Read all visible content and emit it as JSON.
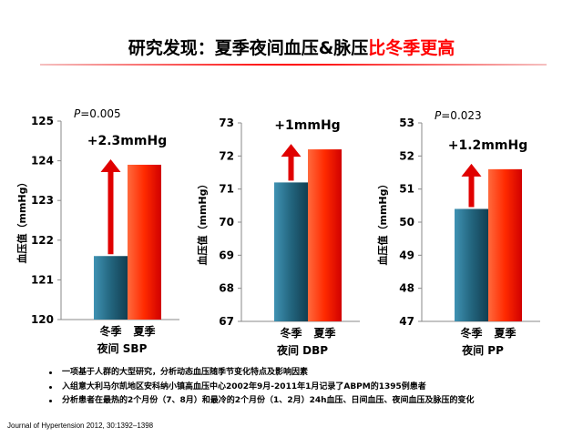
{
  "title": {
    "main": "研究发现：夏季夜间血压&脉压",
    "highlight": "比冬季更高"
  },
  "colors": {
    "winter_bar": "#23657e",
    "summer_bar": "#ff2a00",
    "arrow": "#e00000",
    "title_highlight": "#ff0000"
  },
  "chart_data": [
    {
      "type": "bar",
      "categories": [
        "冬季",
        "夏季"
      ],
      "values": [
        121.6,
        123.9
      ],
      "ylim": [
        120,
        125
      ],
      "yticks": [
        "120",
        "121",
        "122",
        "123",
        "124",
        "125"
      ],
      "ylabel": "血压值（mmHg）",
      "xlabel": "夜间 SBP",
      "p_value": "P=0.005",
      "change_label": "+2.3mmHg"
    },
    {
      "type": "bar",
      "categories": [
        "冬季",
        "夏季"
      ],
      "values": [
        71.2,
        72.2
      ],
      "ylim": [
        67,
        73
      ],
      "yticks": [
        "67",
        "68",
        "69",
        "70",
        "71",
        "72",
        "73"
      ],
      "ylabel": "血压值（mmHg）",
      "xlabel": "夜间 DBP",
      "p_value": "",
      "change_label": "+1mmHg"
    },
    {
      "type": "bar",
      "categories": [
        "冬季",
        "夏季"
      ],
      "values": [
        50.4,
        51.6
      ],
      "ylim": [
        47,
        53
      ],
      "yticks": [
        "47",
        "48",
        "49",
        "50",
        "51",
        "52",
        "53"
      ],
      "ylabel": "血压值（mmHg）",
      "xlabel": "夜间 PP",
      "p_value": "P=0.023",
      "change_label": "+1.2mmHg"
    }
  ],
  "bullets": [
    "一项基于人群的大型研究，分析动态血压随季节变化特点及影响因素",
    "入组意大利马尔凯地区安科纳小镇高血压中心2002年9月-2011年1月记录了ABPM的1395例患者",
    "分析患者在最热的2个月份（7、8月）和最冷的2个月份（1、2月）24h血压、日间血压、夜间血压及脉压的变化"
  ],
  "journal": "Journal of Hypertension 2012, 30:1392–1398"
}
